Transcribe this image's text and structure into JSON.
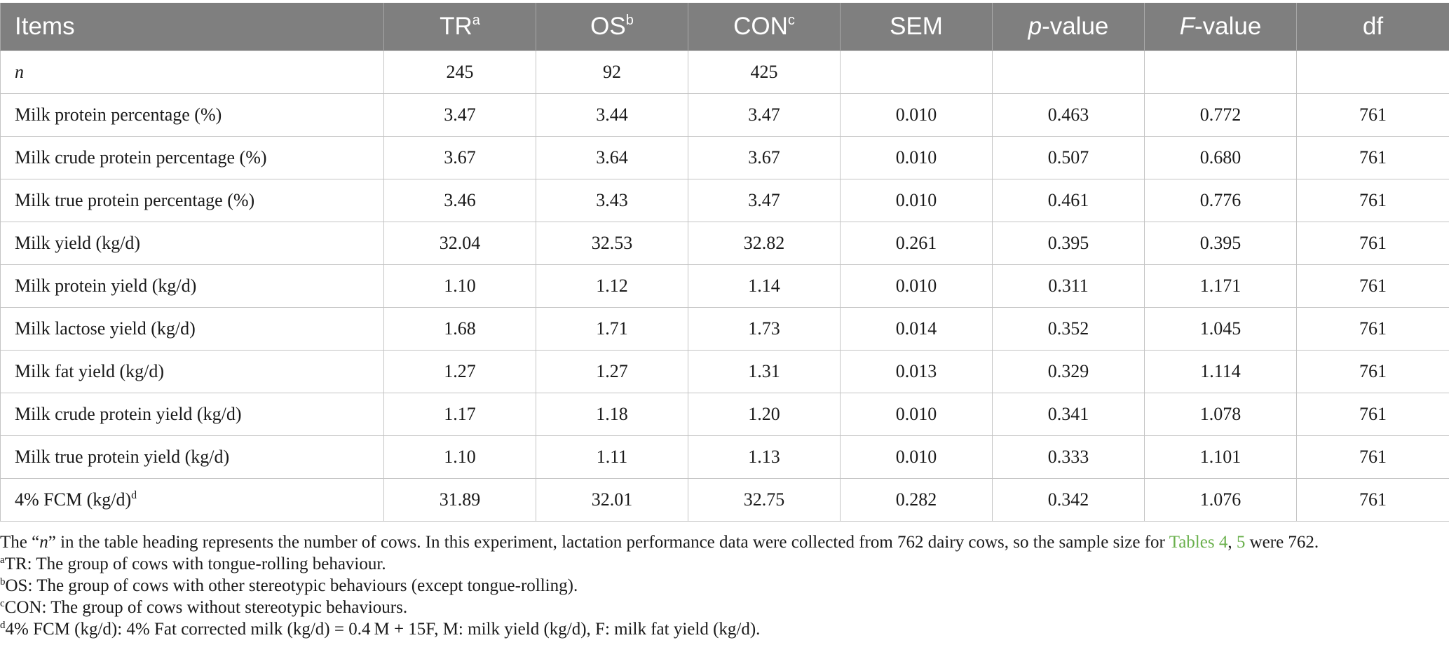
{
  "table": {
    "headers": [
      {
        "text": "Items",
        "sup": "",
        "italic": ""
      },
      {
        "text": "TR",
        "sup": "a",
        "italic": ""
      },
      {
        "text": "OS",
        "sup": "b",
        "italic": ""
      },
      {
        "text": "CON",
        "sup": "c",
        "italic": ""
      },
      {
        "text": "SEM",
        "sup": "",
        "italic": ""
      },
      {
        "text": "-value",
        "sup": "",
        "italic": "p"
      },
      {
        "text": "-value",
        "sup": "",
        "italic": "F"
      },
      {
        "text": "df",
        "sup": "",
        "italic": ""
      }
    ],
    "rows": [
      {
        "label": "n",
        "label_italic": true,
        "label_sup": "",
        "cells": [
          "245",
          "92",
          "425",
          "",
          "",
          "",
          ""
        ]
      },
      {
        "label": "Milk protein percentage (%)",
        "label_italic": false,
        "label_sup": "",
        "cells": [
          "3.47",
          "3.44",
          "3.47",
          "0.010",
          "0.463",
          "0.772",
          "761"
        ]
      },
      {
        "label": "Milk crude protein percentage (%)",
        "label_italic": false,
        "label_sup": "",
        "cells": [
          "3.67",
          "3.64",
          "3.67",
          "0.010",
          "0.507",
          "0.680",
          "761"
        ]
      },
      {
        "label": "Milk true protein percentage (%)",
        "label_italic": false,
        "label_sup": "",
        "cells": [
          "3.46",
          "3.43",
          "3.47",
          "0.010",
          "0.461",
          "0.776",
          "761"
        ]
      },
      {
        "label": "Milk yield (kg/d)",
        "label_italic": false,
        "label_sup": "",
        "cells": [
          "32.04",
          "32.53",
          "32.82",
          "0.261",
          "0.395",
          "0.395",
          "761"
        ]
      },
      {
        "label": "Milk protein yield (kg/d)",
        "label_italic": false,
        "label_sup": "",
        "cells": [
          "1.10",
          "1.12",
          "1.14",
          "0.010",
          "0.311",
          "1.171",
          "761"
        ]
      },
      {
        "label": "Milk lactose yield (kg/d)",
        "label_italic": false,
        "label_sup": "",
        "cells": [
          "1.68",
          "1.71",
          "1.73",
          "0.014",
          "0.352",
          "1.045",
          "761"
        ]
      },
      {
        "label": "Milk fat yield (kg/d)",
        "label_italic": false,
        "label_sup": "",
        "cells": [
          "1.27",
          "1.27",
          "1.31",
          "0.013",
          "0.329",
          "1.114",
          "761"
        ]
      },
      {
        "label": "Milk crude protein yield (kg/d)",
        "label_italic": false,
        "label_sup": "",
        "cells": [
          "1.17",
          "1.18",
          "1.20",
          "0.010",
          "0.341",
          "1.078",
          "761"
        ]
      },
      {
        "label": "Milk true protein yield (kg/d)",
        "label_italic": false,
        "label_sup": "",
        "cells": [
          "1.10",
          "1.11",
          "1.13",
          "0.010",
          "0.333",
          "1.101",
          "761"
        ]
      },
      {
        "label": "4% FCM (kg/d)",
        "label_italic": false,
        "label_sup": "d",
        "cells": [
          "31.89",
          "32.01",
          "32.75",
          "0.282",
          "0.342",
          "1.076",
          "761"
        ]
      }
    ]
  },
  "notes": {
    "main": {
      "before_n": "The “",
      "n": "n",
      "after_n": "” in the table heading represents the number of cows. In this experiment, lactation performance data were collected from 762 dairy cows, so the sample size for ",
      "link1": "Tables 4",
      "sep": ", ",
      "link2": "5",
      "tail": " were 762."
    },
    "a": {
      "sup": "a",
      "text": "TR: The group of cows with tongue-rolling behaviour."
    },
    "b": {
      "sup": "b",
      "text": "OS: The group of cows with other stereotypic behaviours (except tongue-rolling)."
    },
    "c": {
      "sup": "c",
      "text": "CON: The group of cows without stereotypic behaviours."
    },
    "d": {
      "sup": "d",
      "text": "4% FCM (kg/d): 4% Fat corrected milk (kg/d) = 0.4 M + 15F, M: milk yield (kg/d), F: milk fat yield (kg/d)."
    }
  },
  "colors": {
    "header_bg": "#7f7f7f",
    "header_text": "#ffffff",
    "link": "#6ab04c"
  }
}
